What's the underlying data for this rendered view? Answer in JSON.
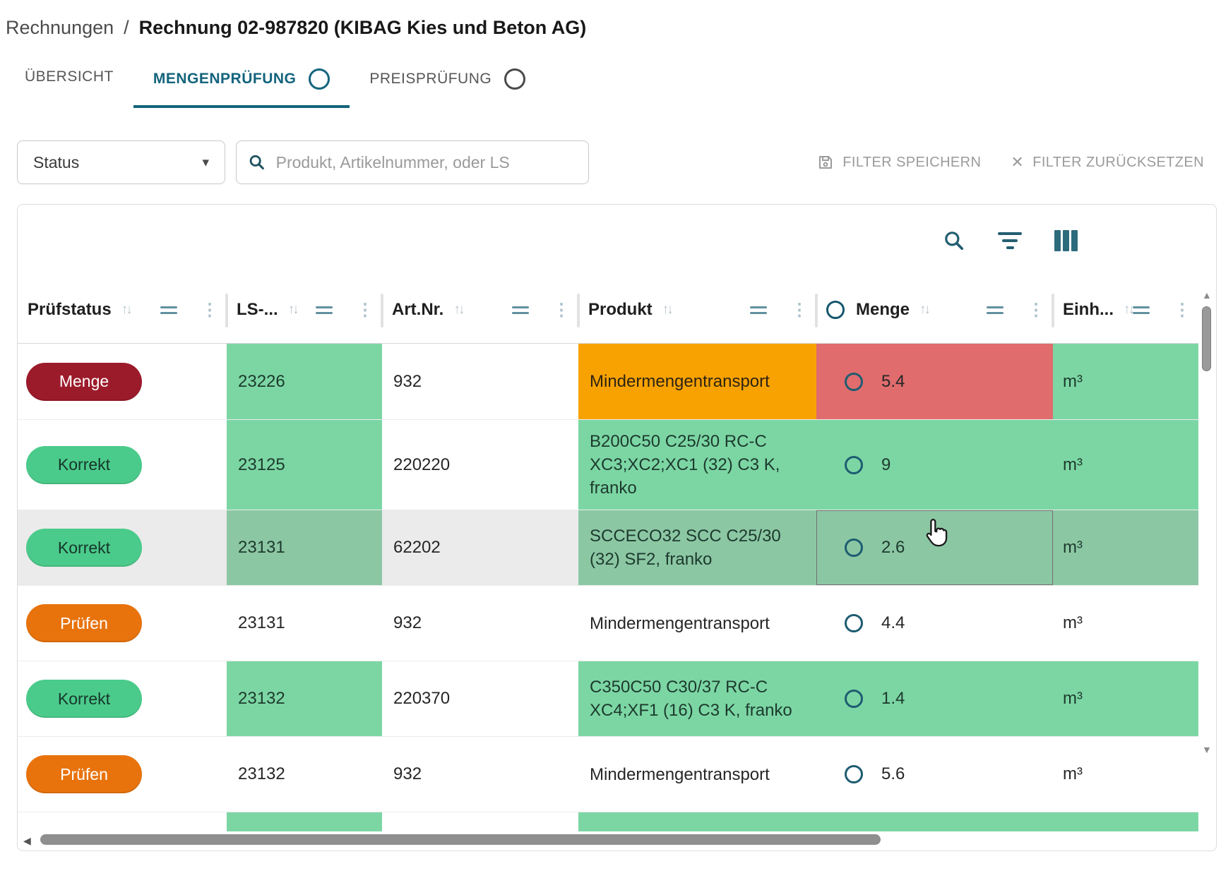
{
  "breadcrumb": {
    "section": "Rechnungen",
    "separator": "/",
    "title": "Rechnung 02-987820 (KIBAG Kies und Beton AG)"
  },
  "tabs": [
    {
      "label": "ÜBERSICHT",
      "active": false,
      "has_circle": false
    },
    {
      "label": "MENGENPRÜFUNG",
      "active": true,
      "has_circle": true
    },
    {
      "label": "PREISPRÜFUNG",
      "active": false,
      "has_circle": true
    }
  ],
  "filter_bar": {
    "status_label": "Status",
    "search_placeholder": "Produkt, Artikelnummer, oder LS",
    "save_label": "FILTER SPEICHERN",
    "reset_label": "FILTER ZURÜCKSETZEN"
  },
  "table": {
    "columns": [
      {
        "label": "Prüfstatus"
      },
      {
        "label": "LS-..."
      },
      {
        "label": "Art.Nr."
      },
      {
        "label": "Produkt"
      },
      {
        "label": "Menge"
      },
      {
        "label": "Einh..."
      }
    ],
    "rows": [
      {
        "status": "Menge",
        "status_type": "error",
        "ls": "23226",
        "artnr": "932",
        "produkt": "Mindermengentransport",
        "menge": "5.4",
        "einheit": "m³",
        "row_bg": "white",
        "menge_focused": false,
        "partial": false,
        "cells": {
          "ls": "green",
          "artnr": "none",
          "produkt": "orange",
          "menge": "red",
          "einheit": "green"
        }
      },
      {
        "status": "Korrekt",
        "status_type": "ok",
        "ls": "23125",
        "artnr": "220220",
        "produkt": "B200C50 C25/30 RC-C XC3;XC2;XC1 (32) C3 K, franko",
        "menge": "9",
        "einheit": "m³",
        "row_bg": "white",
        "menge_focused": false,
        "partial": false,
        "cells": {
          "ls": "green",
          "artnr": "none",
          "produkt": "green",
          "menge": "green",
          "einheit": "green"
        }
      },
      {
        "status": "Korrekt",
        "status_type": "ok",
        "ls": "23131",
        "artnr": "62202",
        "produkt": "SCCECO32 SCC C25/30 (32) SF2, franko",
        "menge": "2.6",
        "einheit": "m³",
        "row_bg": "gray",
        "menge_focused": true,
        "partial": false,
        "cells": {
          "ls": "green",
          "artnr": "none",
          "produkt": "green",
          "menge": "green",
          "einheit": "green"
        }
      },
      {
        "status": "Prüfen",
        "status_type": "warn",
        "ls": "23131",
        "artnr": "932",
        "produkt": "Mindermengentransport",
        "menge": "4.4",
        "einheit": "m³",
        "row_bg": "white",
        "menge_focused": false,
        "partial": false,
        "cells": {
          "ls": "none",
          "artnr": "none",
          "produkt": "none",
          "menge": "none",
          "einheit": "none"
        }
      },
      {
        "status": "Korrekt",
        "status_type": "ok",
        "ls": "23132",
        "artnr": "220370",
        "produkt": "C350C50 C30/37 RC-C XC4;XF1 (16) C3 K, franko",
        "menge": "1.4",
        "einheit": "m³",
        "row_bg": "white",
        "menge_focused": false,
        "partial": false,
        "cells": {
          "ls": "green",
          "artnr": "none",
          "produkt": "green",
          "menge": "green",
          "einheit": "green"
        }
      },
      {
        "status": "Prüfen",
        "status_type": "warn",
        "ls": "23132",
        "artnr": "932",
        "produkt": "Mindermengentransport",
        "menge": "5.6",
        "einheit": "m³",
        "row_bg": "white",
        "menge_focused": false,
        "partial": false,
        "cells": {
          "ls": "none",
          "artnr": "none",
          "produkt": "none",
          "menge": "none",
          "einheit": "none"
        }
      },
      {
        "status": null,
        "status_type": null,
        "ls": "",
        "artnr": "",
        "produkt": "",
        "menge": "",
        "einheit": "",
        "row_bg": "white",
        "menge_focused": false,
        "partial": true,
        "cells": {
          "ls": "green",
          "artnr": "none",
          "produkt": "green",
          "menge": "green",
          "einheit": "green"
        }
      }
    ]
  },
  "icons": {
    "caret": "▾",
    "sort": "↑↓",
    "kebab": "⋮",
    "reset": "✕",
    "scroll_left": "◀",
    "scroll_up": "▲",
    "scroll_down": "▼"
  },
  "colors": {
    "accent_teal": "#14647c",
    "badge_error": "#9c1b2b",
    "badge_ok": "#4bcb8b",
    "badge_warn": "#e8730d",
    "cell_green": "#7cd6a4",
    "cell_orange": "#f8a201",
    "cell_red": "#e06c6d",
    "row_highlight": "#ebebeb"
  }
}
